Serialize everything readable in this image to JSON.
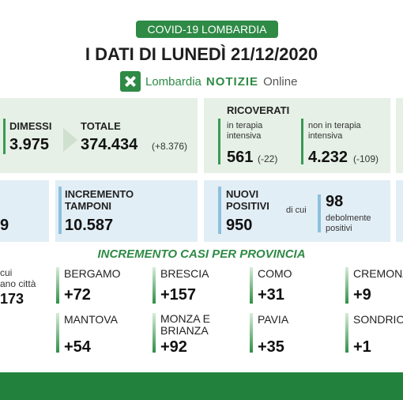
{
  "header": {
    "badge": "COVID-19 LOMBARDIA",
    "title": "I DATI DI LUNEDÌ 21/12/2020",
    "brand_a": "Lombardia",
    "brand_b": "NOTIZIE",
    "brand_c": "Online"
  },
  "dimessi": {
    "label": "DIMESSI",
    "value": "3.975"
  },
  "totale": {
    "label": "TOTALE",
    "value": "374.434",
    "delta": "(+8.376)"
  },
  "ricoverati": {
    "label": "RICOVERATI",
    "intensiva_label": "in terapia intensiva",
    "intensiva_value": "561",
    "intensiva_delta": "(-22)",
    "non_intensiva_label": "non in terapia intensiva",
    "non_intensiva_value": "4.232",
    "non_intensiva_delta": "(-109)"
  },
  "left_partial": {
    "value": "9"
  },
  "tamponi": {
    "label": "INCREMENTO TAMPONI",
    "value": "10.587"
  },
  "positivi": {
    "label": "NUOVI POSITIVI",
    "value": "950",
    "dicui": "di cui",
    "debolmente_value": "98",
    "debolmente_label": "debolmente positivi"
  },
  "province_section": {
    "title": "INCREMENTO CASI PER PROVINCIA",
    "left_text_1": "cui",
    "left_text_2": "ano città",
    "left_value": "173"
  },
  "province": [
    {
      "name": "BERGAMO",
      "value": "+72"
    },
    {
      "name": "BRESCIA",
      "value": "+157"
    },
    {
      "name": "COMO",
      "value": "+31"
    },
    {
      "name": "CREMONA",
      "value": "+9"
    },
    {
      "name": "MANTOVA",
      "value": "+54"
    },
    {
      "name": "MONZA E BRIANZA",
      "value": "+92"
    },
    {
      "name": "PAVIA",
      "value": "+35"
    },
    {
      "name": "SONDRIO",
      "value": "+1"
    }
  ]
}
